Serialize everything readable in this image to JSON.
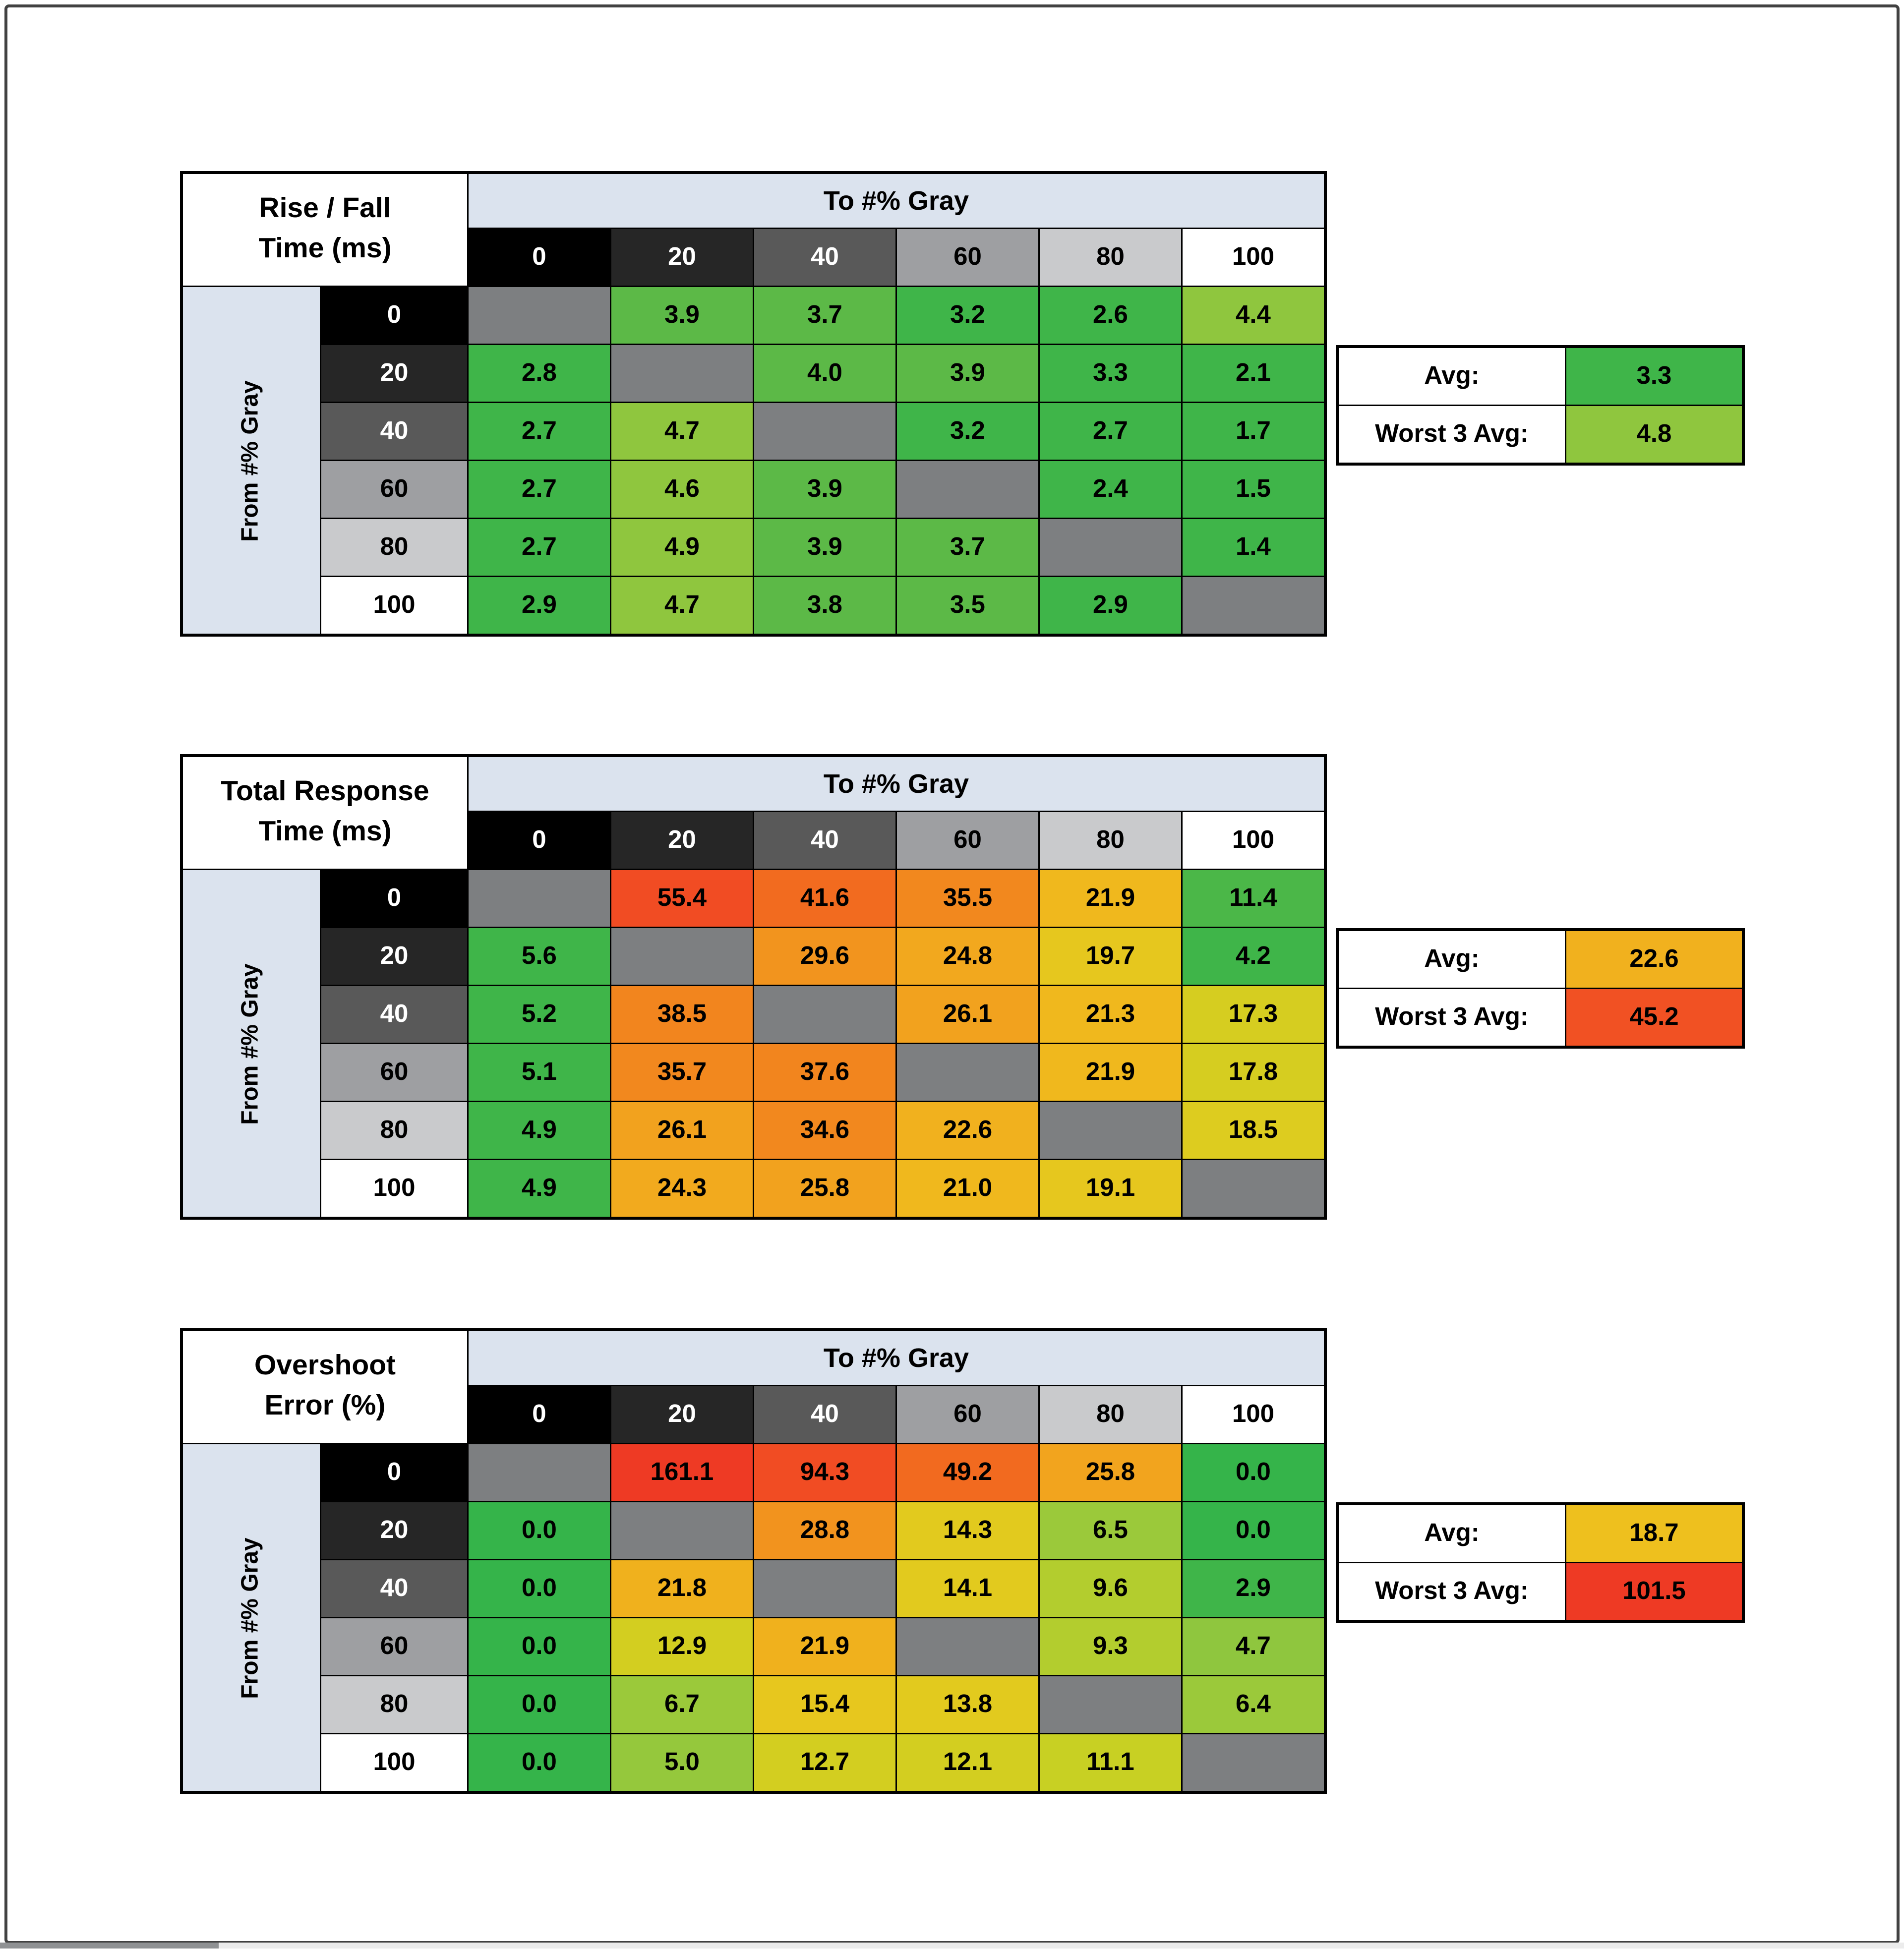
{
  "page": {
    "background": "#ffffff",
    "frame_color": "#414141"
  },
  "shared": {
    "to_header": "To #% Gray",
    "from_header": "From #% Gray",
    "gray_levels": [
      "0",
      "20",
      "40",
      "60",
      "80",
      "100"
    ],
    "level_bg": [
      "#000000",
      "#262626",
      "#595959",
      "#9e9fa2",
      "#c9cacc",
      "#ffffff"
    ],
    "level_fg": [
      "#ffffff",
      "#ffffff",
      "#ffffff",
      "#000000",
      "#000000",
      "#000000"
    ],
    "header_band_bg": "#dbe3ee",
    "diagonal_bg": "#7d7f81",
    "avg_label": "Avg:",
    "worst_label": "Worst 3 Avg:"
  },
  "tables": [
    {
      "id": "rise-fall-time",
      "title_line1": "Rise / Fall",
      "title_line2": "Time (ms)",
      "avg": {
        "value": "3.3",
        "color": "#3fb549"
      },
      "worst3": {
        "value": "4.8",
        "color": "#8fc63e"
      },
      "rows": [
        {
          "cells": [
            null,
            {
              "v": "3.9",
              "c": "#5cb947"
            },
            {
              "v": "3.7",
              "c": "#5cb947"
            },
            {
              "v": "3.2",
              "c": "#3fb549"
            },
            {
              "v": "2.6",
              "c": "#3fb549"
            },
            {
              "v": "4.4",
              "c": "#8fc63e"
            }
          ]
        },
        {
          "cells": [
            {
              "v": "2.8",
              "c": "#3fb549"
            },
            null,
            {
              "v": "4.0",
              "c": "#5cb947"
            },
            {
              "v": "3.9",
              "c": "#5cb947"
            },
            {
              "v": "3.3",
              "c": "#3fb549"
            },
            {
              "v": "2.1",
              "c": "#3fb549"
            }
          ]
        },
        {
          "cells": [
            {
              "v": "2.7",
              "c": "#3fb549"
            },
            {
              "v": "4.7",
              "c": "#8fc63e"
            },
            null,
            {
              "v": "3.2",
              "c": "#3fb549"
            },
            {
              "v": "2.7",
              "c": "#3fb549"
            },
            {
              "v": "1.7",
              "c": "#3fb549"
            }
          ]
        },
        {
          "cells": [
            {
              "v": "2.7",
              "c": "#3fb549"
            },
            {
              "v": "4.6",
              "c": "#8fc63e"
            },
            {
              "v": "3.9",
              "c": "#5cb947"
            },
            null,
            {
              "v": "2.4",
              "c": "#3fb549"
            },
            {
              "v": "1.5",
              "c": "#3fb549"
            }
          ]
        },
        {
          "cells": [
            {
              "v": "2.7",
              "c": "#3fb549"
            },
            {
              "v": "4.9",
              "c": "#8fc63e"
            },
            {
              "v": "3.9",
              "c": "#5cb947"
            },
            {
              "v": "3.7",
              "c": "#5cb947"
            },
            null,
            {
              "v": "1.4",
              "c": "#3fb549"
            }
          ]
        },
        {
          "cells": [
            {
              "v": "2.9",
              "c": "#3fb549"
            },
            {
              "v": "4.7",
              "c": "#8fc63e"
            },
            {
              "v": "3.8",
              "c": "#5cb947"
            },
            {
              "v": "3.5",
              "c": "#5cb947"
            },
            {
              "v": "2.9",
              "c": "#3fb549"
            },
            null
          ]
        }
      ]
    },
    {
      "id": "total-response-time",
      "title_line1": "Total Response",
      "title_line2": "Time (ms)",
      "avg": {
        "value": "22.6",
        "color": "#f1b11e"
      },
      "worst3": {
        "value": "45.2",
        "color": "#f15123"
      },
      "rows": [
        {
          "cells": [
            null,
            {
              "v": "55.4",
              "c": "#f14c23"
            },
            {
              "v": "41.6",
              "c": "#f26b1f"
            },
            {
              "v": "35.5",
              "c": "#f2881e"
            },
            {
              "v": "21.9",
              "c": "#f0b81d"
            },
            {
              "v": "11.4",
              "c": "#4bb748"
            }
          ]
        },
        {
          "cells": [
            {
              "v": "5.6",
              "c": "#3fb549"
            },
            null,
            {
              "v": "29.6",
              "c": "#f2941e"
            },
            {
              "v": "24.8",
              "c": "#f2a81e"
            },
            {
              "v": "19.7",
              "c": "#e6c71e"
            },
            {
              "v": "4.2",
              "c": "#3fb549"
            }
          ]
        },
        {
          "cells": [
            {
              "v": "5.2",
              "c": "#3fb549"
            },
            {
              "v": "38.5",
              "c": "#f2851e"
            },
            null,
            {
              "v": "26.1",
              "c": "#f2a21e"
            },
            {
              "v": "21.3",
              "c": "#f0b81d"
            },
            {
              "v": "17.3",
              "c": "#d6cd20"
            }
          ]
        },
        {
          "cells": [
            {
              "v": "5.1",
              "c": "#3fb549"
            },
            {
              "v": "35.7",
              "c": "#f2881e"
            },
            {
              "v": "37.6",
              "c": "#f2851e"
            },
            null,
            {
              "v": "21.9",
              "c": "#f0b81d"
            },
            {
              "v": "17.8",
              "c": "#d6cd20"
            }
          ]
        },
        {
          "cells": [
            {
              "v": "4.9",
              "c": "#3fb549"
            },
            {
              "v": "26.1",
              "c": "#f2a21e"
            },
            {
              "v": "34.6",
              "c": "#f2881e"
            },
            {
              "v": "22.6",
              "c": "#f1b11e"
            },
            null,
            {
              "v": "18.5",
              "c": "#ddcc1f"
            }
          ]
        },
        {
          "cells": [
            {
              "v": "4.9",
              "c": "#3fb549"
            },
            {
              "v": "24.3",
              "c": "#f2aa1e"
            },
            {
              "v": "25.8",
              "c": "#f2a21e"
            },
            {
              "v": "21.0",
              "c": "#f0b81d"
            },
            {
              "v": "19.1",
              "c": "#e6c71e"
            },
            null
          ]
        }
      ]
    },
    {
      "id": "overshoot-error",
      "title_line1": "Overshoot",
      "title_line2": "Error (%)",
      "avg": {
        "value": "18.7",
        "color": "#eec01e"
      },
      "worst3": {
        "value": "101.5",
        "color": "#ee3a24"
      },
      "rows": [
        {
          "cells": [
            null,
            {
              "v": "161.1",
              "c": "#ee3a24"
            },
            {
              "v": "94.3",
              "c": "#f14c23"
            },
            {
              "v": "49.2",
              "c": "#f26a1f"
            },
            {
              "v": "25.8",
              "c": "#f2a41e"
            },
            {
              "v": "0.0",
              "c": "#35b44a"
            }
          ]
        },
        {
          "cells": [
            {
              "v": "0.0",
              "c": "#35b44a"
            },
            null,
            {
              "v": "28.8",
              "c": "#f2931e"
            },
            {
              "v": "14.3",
              "c": "#e2ca1e"
            },
            {
              "v": "6.5",
              "c": "#9bc93a"
            },
            {
              "v": "0.0",
              "c": "#35b44a"
            }
          ]
        },
        {
          "cells": [
            {
              "v": "0.0",
              "c": "#35b44a"
            },
            {
              "v": "21.8",
              "c": "#f0b11d"
            },
            null,
            {
              "v": "14.1",
              "c": "#e2ca1e"
            },
            {
              "v": "9.6",
              "c": "#b3cd2e"
            },
            {
              "v": "2.9",
              "c": "#3fb549"
            }
          ]
        },
        {
          "cells": [
            {
              "v": "0.0",
              "c": "#35b44a"
            },
            {
              "v": "12.9",
              "c": "#d3ce20"
            },
            {
              "v": "21.9",
              "c": "#f0b11d"
            },
            null,
            {
              "v": "9.3",
              "c": "#b3cd2e"
            },
            {
              "v": "4.7",
              "c": "#8fc63e"
            }
          ]
        },
        {
          "cells": [
            {
              "v": "0.0",
              "c": "#35b44a"
            },
            {
              "v": "6.7",
              "c": "#9bc93a"
            },
            {
              "v": "15.4",
              "c": "#e7c71e"
            },
            {
              "v": "13.8",
              "c": "#e2ca1e"
            },
            null,
            {
              "v": "6.4",
              "c": "#9bc93a"
            }
          ]
        },
        {
          "cells": [
            {
              "v": "0.0",
              "c": "#35b44a"
            },
            {
              "v": "5.0",
              "c": "#95c83c"
            },
            {
              "v": "12.7",
              "c": "#d3ce20"
            },
            {
              "v": "12.1",
              "c": "#d3ce20"
            },
            {
              "v": "11.1",
              "c": "#c8d023"
            },
            null
          ]
        }
      ]
    }
  ],
  "chart_data": [
    {
      "type": "heatmap",
      "title": "Rise / Fall Time (ms)",
      "xlabel": "To #% Gray",
      "ylabel": "From #% Gray",
      "x": [
        0,
        20,
        40,
        60,
        80,
        100
      ],
      "y": [
        0,
        20,
        40,
        60,
        80,
        100
      ],
      "values": [
        [
          null,
          3.9,
          3.7,
          3.2,
          2.6,
          4.4
        ],
        [
          2.8,
          null,
          4.0,
          3.9,
          3.3,
          2.1
        ],
        [
          2.7,
          4.7,
          null,
          3.2,
          2.7,
          1.7
        ],
        [
          2.7,
          4.6,
          3.9,
          null,
          2.4,
          1.5
        ],
        [
          2.7,
          4.9,
          3.9,
          3.7,
          null,
          1.4
        ],
        [
          2.9,
          4.7,
          3.8,
          3.5,
          2.9,
          null
        ]
      ],
      "avg": 3.3,
      "worst3_avg": 4.8,
      "color_scale": "green(low) to red(high)"
    },
    {
      "type": "heatmap",
      "title": "Total Response Time (ms)",
      "xlabel": "To #% Gray",
      "ylabel": "From #% Gray",
      "x": [
        0,
        20,
        40,
        60,
        80,
        100
      ],
      "y": [
        0,
        20,
        40,
        60,
        80,
        100
      ],
      "values": [
        [
          null,
          55.4,
          41.6,
          35.5,
          21.9,
          11.4
        ],
        [
          5.6,
          null,
          29.6,
          24.8,
          19.7,
          4.2
        ],
        [
          5.2,
          38.5,
          null,
          26.1,
          21.3,
          17.3
        ],
        [
          5.1,
          35.7,
          37.6,
          null,
          21.9,
          17.8
        ],
        [
          4.9,
          26.1,
          34.6,
          22.6,
          null,
          18.5
        ],
        [
          4.9,
          24.3,
          25.8,
          21.0,
          19.1,
          null
        ]
      ],
      "avg": 22.6,
      "worst3_avg": 45.2,
      "color_scale": "green(low) to red(high)"
    },
    {
      "type": "heatmap",
      "title": "Overshoot Error (%)",
      "xlabel": "To #% Gray",
      "ylabel": "From #% Gray",
      "x": [
        0,
        20,
        40,
        60,
        80,
        100
      ],
      "y": [
        0,
        20,
        40,
        60,
        80,
        100
      ],
      "values": [
        [
          null,
          161.1,
          94.3,
          49.2,
          25.8,
          0.0
        ],
        [
          0.0,
          null,
          28.8,
          14.3,
          6.5,
          0.0
        ],
        [
          0.0,
          21.8,
          null,
          14.1,
          9.6,
          2.9
        ],
        [
          0.0,
          12.9,
          21.9,
          null,
          9.3,
          4.7
        ],
        [
          0.0,
          6.7,
          15.4,
          13.8,
          null,
          6.4
        ],
        [
          0.0,
          5.0,
          12.7,
          12.1,
          11.1,
          null
        ]
      ],
      "avg": 18.7,
      "worst3_avg": 101.5,
      "color_scale": "green(low) to red(high)"
    }
  ],
  "scrollbar": {
    "track_color": "#ececec",
    "thumb_color": "#8f9193"
  }
}
